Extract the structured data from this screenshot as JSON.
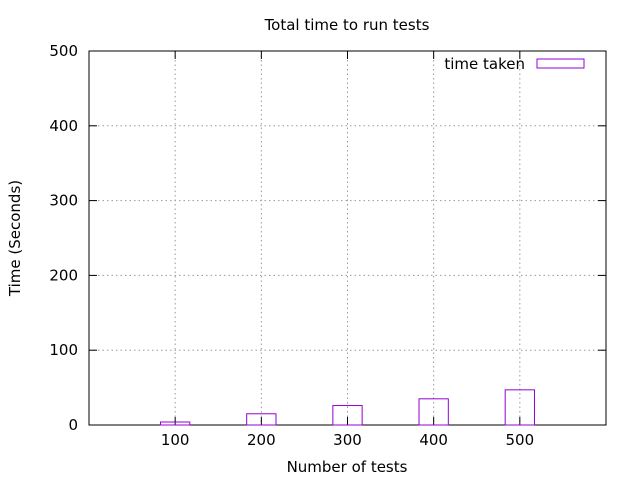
{
  "chart_data": {
    "type": "bar",
    "title": "Total time to run tests",
    "xlabel": "Number of tests",
    "ylabel": "Time (Seconds)",
    "categories": [
      "100",
      "200",
      "300",
      "400",
      "500"
    ],
    "series": [
      {
        "name": "time taken",
        "values": [
          4,
          15,
          26,
          35,
          47
        ],
        "color": "#9400d3"
      }
    ],
    "ylim": [
      0,
      500
    ],
    "yticks": [
      0,
      100,
      200,
      300,
      400,
      500
    ],
    "grid": true,
    "legend_position": "top-right"
  }
}
